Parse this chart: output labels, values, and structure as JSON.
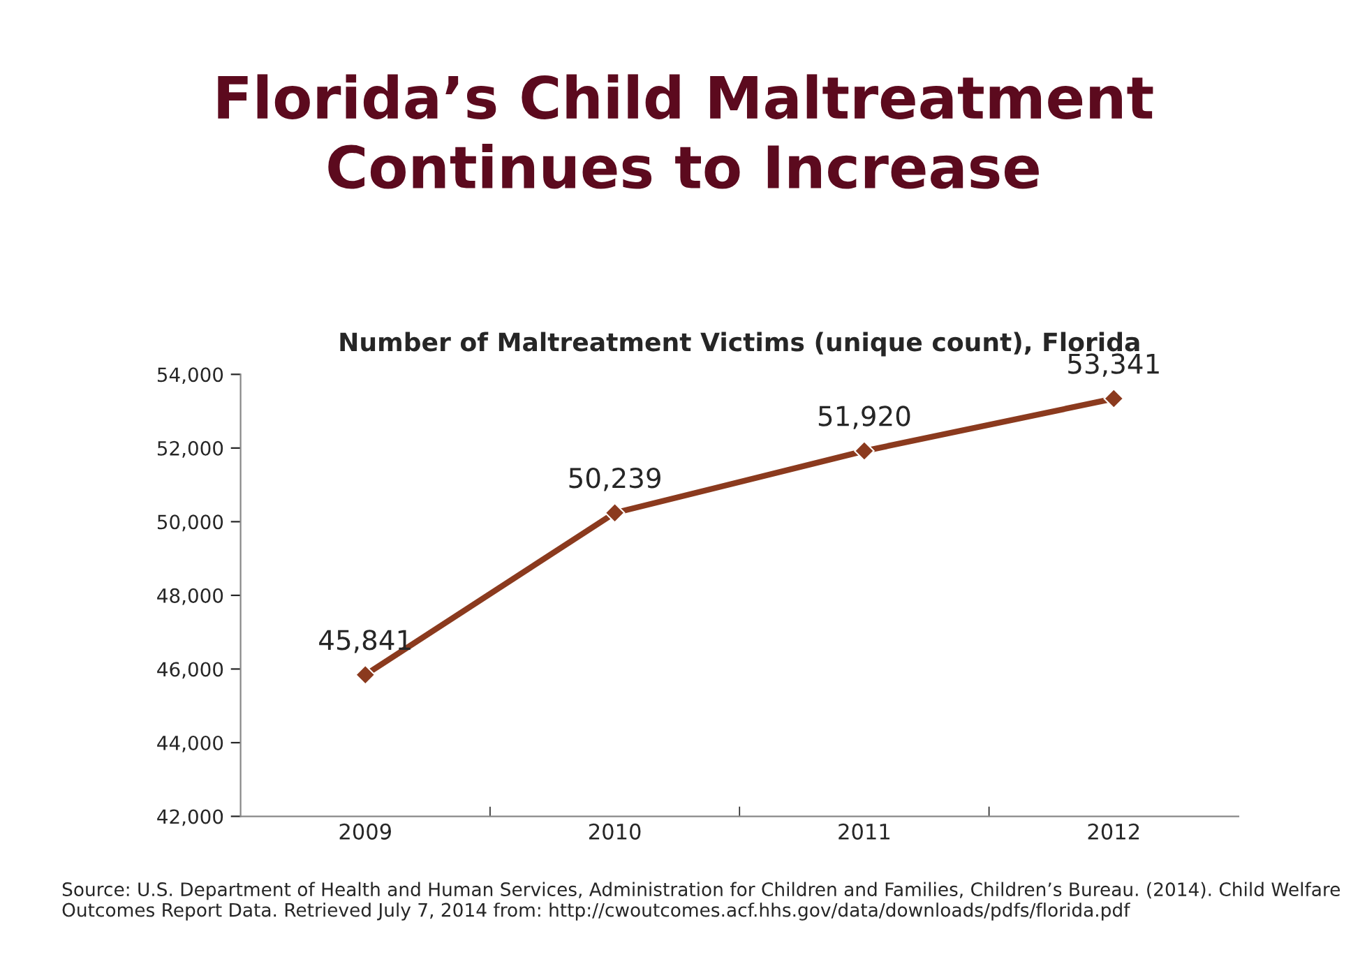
{
  "chart_data": {
    "type": "line",
    "title": "Florida’s Child Maltreatment\nContinues to Increase",
    "subtitle": "Number of Maltreatment Victims (unique count), Florida",
    "categories": [
      "2009",
      "2010",
      "2011",
      "2012"
    ],
    "series": [
      {
        "color": "#8b3a1e",
        "values": [
          45841,
          50239,
          51920,
          53341
        ],
        "value_labels": [
          "45,841",
          "50,239",
          "51,920",
          "53,341"
        ]
      }
    ],
    "ylim": [
      42000,
      54000
    ],
    "yticks": [
      {
        "value": 42000,
        "label": "42,000"
      },
      {
        "value": 44000,
        "label": "44,000"
      },
      {
        "value": 46000,
        "label": "46,000"
      },
      {
        "value": 48000,
        "label": "48,000"
      },
      {
        "value": 50000,
        "label": "50,000"
      },
      {
        "value": 52000,
        "label": "52,000"
      },
      {
        "value": 54000,
        "label": "54,000"
      }
    ],
    "marker": "diamond",
    "line_style": "solid",
    "grid": false,
    "legend": false,
    "annotations": [
      "Source: U.S. Department of Health and Human Services, Administration for Children and Families, Children’s Bureau. (2014). Child Welfare Outcomes Report Data. Retrieved July 7, 2014 from: http://cwoutcomes.acf.hhs.gov/data/downloads/pdfs/florida.pdf"
    ]
  }
}
